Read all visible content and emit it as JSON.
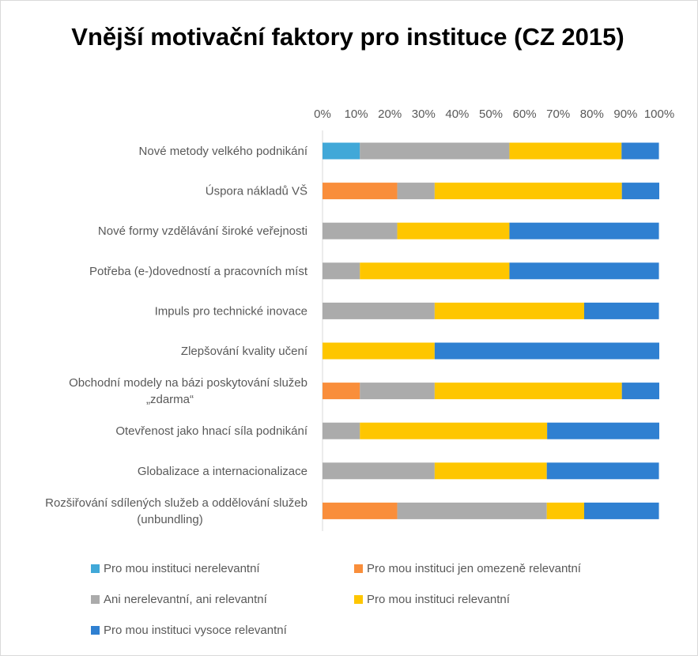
{
  "chart_data": {
    "type": "bar",
    "orientation": "horizontal",
    "stacked": "percent",
    "title": "Vnější motivační faktory pro instituce (CZ 2015)",
    "xlabel": "",
    "ylabel": "",
    "xlim": [
      0,
      100
    ],
    "x_ticks": [
      "0%",
      "10%",
      "20%",
      "30%",
      "40%",
      "50%",
      "60%",
      "70%",
      "80%",
      "90%",
      "100%"
    ],
    "grid": false,
    "legend_position": "bottom",
    "categories": [
      "Nové metody velkého podnikání",
      "Úspora nákladů VŠ",
      "Nové formy vzdělávání široké veřejnosti",
      "Potřeba (e-)dovedností a pracovních míst",
      "Impuls pro technické inovace",
      "Zlepšování kvality učení",
      "Obchodní modely na bázi poskytování služeb „zdarma“",
      "Otevřenost jako hnací síla podnikání",
      "Globalizace a internacionalizace",
      "Rozšiřování sdílených služeb a oddělování služeb (unbundling)"
    ],
    "category_lines": [
      [
        "Nové metody velkého podnikání"
      ],
      [
        "Úspora nákladů VŠ"
      ],
      [
        "Nové formy vzdělávání široké veřejnosti"
      ],
      [
        "Potřeba (e-)dovedností a pracovních míst"
      ],
      [
        "Impuls pro technické inovace"
      ],
      [
        "Zlepšování kvality učení"
      ],
      [
        "Obchodní modely na bázi poskytování služeb",
        "„zdarma“"
      ],
      [
        "Otevřenost jako hnací síla podnikání"
      ],
      [
        "Globalizace a internacionalizace"
      ],
      [
        "Rozšiřování sdílených služeb a oddělování služeb",
        "(unbundling)"
      ]
    ],
    "series": [
      {
        "name": "Pro mou instituci nerelevantní",
        "color": "#41a8d8",
        "values": [
          11.1,
          0,
          0,
          0,
          0,
          0,
          0,
          0,
          0,
          0
        ]
      },
      {
        "name": "Pro mou instituci jen omezeně relevantní",
        "color": "#f98e3b",
        "values": [
          0,
          22.2,
          0,
          0,
          0,
          0,
          11.1,
          0,
          0,
          22.2
        ]
      },
      {
        "name": "Ani nerelevantní, ani relevantní",
        "color": "#ababab",
        "values": [
          44.4,
          11.1,
          22.2,
          11.1,
          33.3,
          0,
          22.2,
          11.1,
          33.3,
          44.4
        ]
      },
      {
        "name": "Pro mou instituci relevantní",
        "color": "#fec600",
        "values": [
          33.3,
          55.6,
          33.3,
          44.4,
          44.4,
          33.3,
          55.6,
          55.6,
          33.3,
          11.1
        ]
      },
      {
        "name": "Pro mou instituci vysoce relevantní",
        "color": "#2f80d1",
        "values": [
          11.1,
          11.1,
          44.4,
          44.4,
          22.2,
          66.7,
          11.1,
          33.3,
          33.3,
          22.2
        ]
      }
    ]
  }
}
